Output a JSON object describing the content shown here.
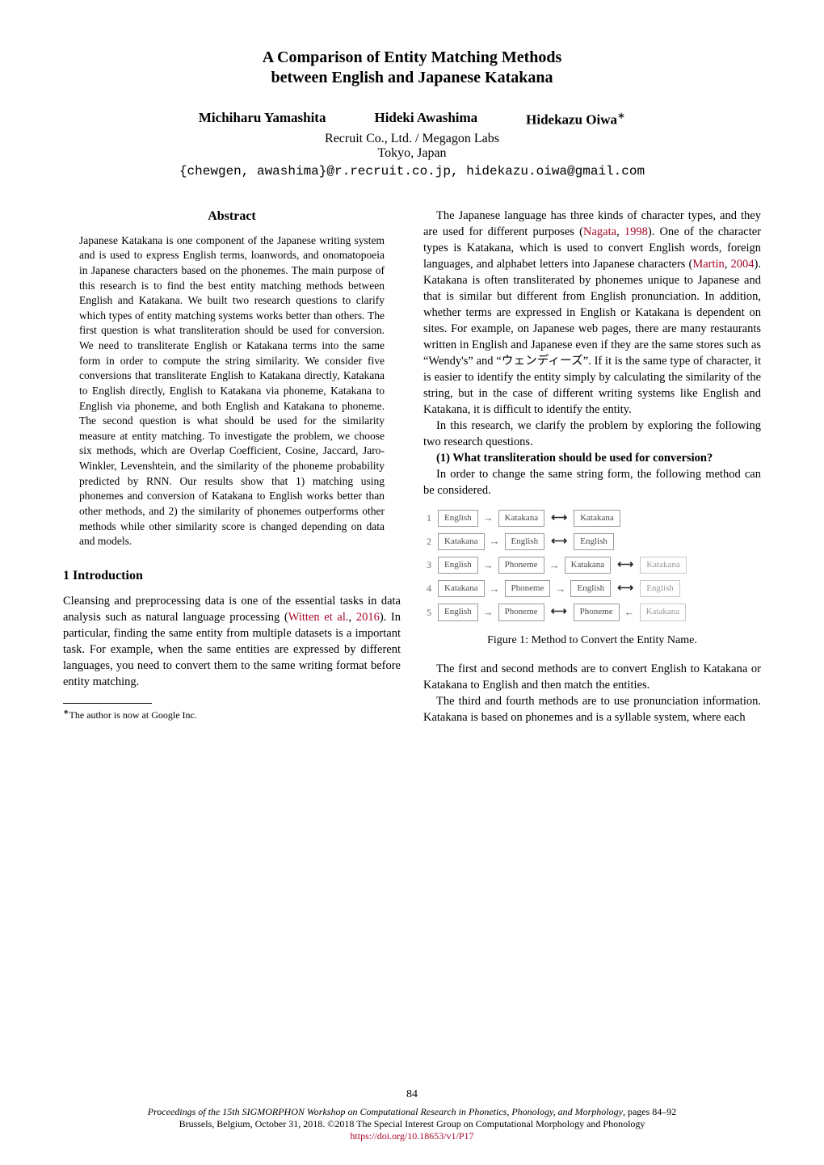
{
  "title_line1": "A Comparison of Entity Matching Methods",
  "title_line2": "between English and Japanese Katakana",
  "authors": [
    "Michiharu Yamashita",
    "Hideki Awashima",
    "Hidekazu Oiwa"
  ],
  "author_star": "∗",
  "affiliation1": "Recruit Co., Ltd. / Megagon Labs",
  "affiliation2": "Tokyo, Japan",
  "emails": "{chewgen, awashima}@r.recruit.co.jp, hidekazu.oiwa@gmail.com",
  "abstract_head": "Abstract",
  "abstract_body": "Japanese Katakana is one component of the Japanese writing system and is used to express English terms, loanwords, and onomatopoeia in Japanese characters based on the phonemes. The main purpose of this research is to find the best entity matching methods between English and Katakana. We built two research questions to clarify which types of entity matching systems works better than others. The first question is what transliteration should be used for conversion. We need to transliterate English or Katakana terms into the same form in order to compute the string similarity. We consider five conversions that transliterate English to Katakana directly, Katakana to English directly, English to Katakana via phoneme, Katakana to English via phoneme, and both English and Katakana to phoneme. The second question is what should be used for the similarity measure at entity matching. To investigate the problem, we choose six methods, which are Overlap Coefficient, Cosine, Jaccard, Jaro-Winkler, Levenshtein, and the similarity of the phoneme probability predicted by RNN. Our results show that 1) matching using phonemes and conversion of Katakana to English works better than other methods, and 2) the similarity of phonemes outperforms other methods while other similarity score is changed depending on data and models.",
  "section1_head": "1   Introduction",
  "left_para1": "Cleansing and preprocessing data is one of the essential tasks in data analysis such as natural language processing (",
  "left_cite1": "Witten et al.",
  "left_cite1_year": "2016",
  "left_para1b": "). In particular, finding the same entity from multiple datasets is a important task. For example, when the same entities are expressed by different languages, you need to convert them to the same writing format before entity matching.",
  "footnote_text": "The author is now at Google Inc.",
  "right_para1a": "The Japanese language has three kinds of character types, and they are used for different purposes (",
  "right_cite1": "Nagata",
  "right_cite1_year": "1998",
  "right_para1b": "). One of the character types is Katakana, which is used to convert English words, foreign languages, and alphabet letters into Japanese characters (",
  "right_cite2": "Martin",
  "right_cite2_year": "2004",
  "right_para1c": "). Katakana is often transliterated by phonemes unique to Japanese and that is similar but different from English pronunciation. In addition, whether terms are expressed in English or Katakana is dependent on sites. For example, on Japanese web pages, there are many restaurants written in English and Japanese even if they are the same stores such as “Wendy's” and “ウェンディーズ”. If it is the same type of character, it is easier to identify the entity simply by calculating the similarity of the string, but in the case of different writing systems like English and Katakana, it is difficult to identify the entity.",
  "right_para2": "In this research, we clarify the problem by exploring the following two research questions.",
  "rq1": "(1) What transliteration should be used for conversion?",
  "right_para3": "In order to change the same string form, the following method can be considered.",
  "figure1_caption": "Figure 1: Method to Convert the Entity Name.",
  "right_para4": "The first and second methods are to convert English to Katakana or Katakana to English and then match the entities.",
  "right_para5": "The third and fourth methods are to use pronunciation information. Katakana is based on phonemes and is a syllable system, where each",
  "figure1": {
    "rows": [
      {
        "n": "1",
        "chain": [
          "English",
          "Katakana"
        ],
        "target": "Katakana"
      },
      {
        "n": "2",
        "chain": [
          "Katakana",
          "English"
        ],
        "target": "English"
      },
      {
        "n": "3",
        "chain": [
          "English",
          "Phoneme",
          "Katakana"
        ],
        "target": "Katakana"
      },
      {
        "n": "4",
        "chain": [
          "Katakana",
          "Phoneme",
          "English"
        ],
        "target": "English"
      },
      {
        "n": "5",
        "chain": [
          "English",
          "Phoneme"
        ],
        "target_chain": [
          "Phoneme"
        ],
        "target_final": "Katakana"
      }
    ],
    "number_color": "#6a6a6a",
    "chip_border": "#9a9a9a",
    "chip_light_border": "#c8c8c8",
    "chip_text": "#4a4a4a",
    "chip_light_text": "#9a9a9a",
    "fontsize": 11
  },
  "page_number": "84",
  "footer_line1": "Proceedings of the 15th SIGMORPHON Workshop on Computational Research in Phonetics, Phonology, and Morphology",
  "footer_pages": ", pages 84–92",
  "footer_line2": "Brussels, Belgium, October 31, 2018. ©2018 The Special Interest Group on Computational Morphology and Phonology",
  "footer_doi": "https://doi.org/10.18653/v1/P17",
  "colors": {
    "text": "#000000",
    "cite": "#a6092b",
    "bg": "#ffffff"
  }
}
